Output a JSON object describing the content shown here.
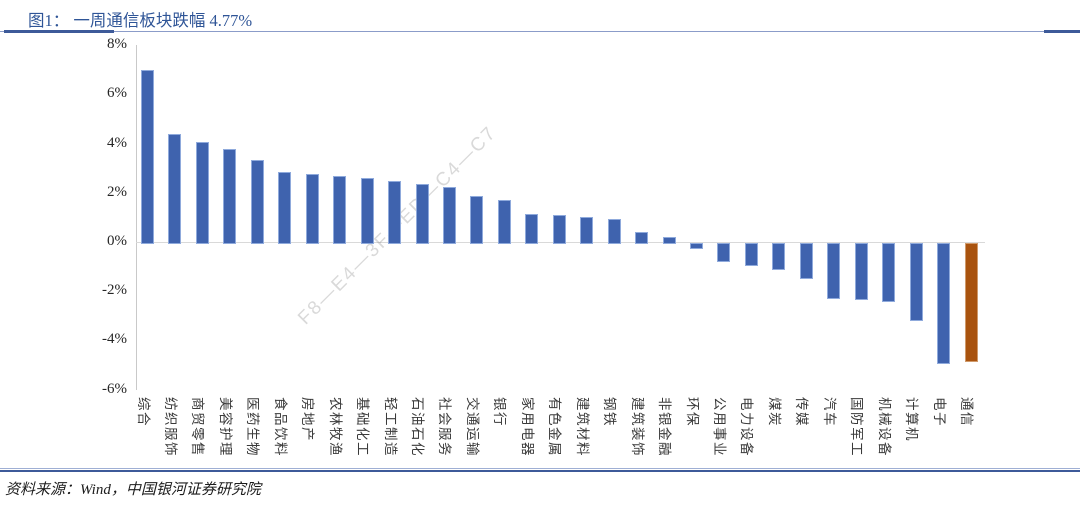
{
  "header": {
    "title": "图1： 一周通信板块跌幅 4.77%"
  },
  "footer": {
    "source": "资料来源：Wind，中国银河证券研究院"
  },
  "watermark": "F8—E4—3F—ED—C4—C7",
  "colors": {
    "title_blue": "#2F5597",
    "rule_blue": "#3D5A99",
    "bar_blue": "#3F63AE",
    "bar_blue_border": "#8FAADC",
    "bar_orange": "#A9530F",
    "bar_orange_border": "#D09A6B",
    "axis_gray": "#D9D9D9"
  },
  "chart_data": {
    "type": "bar",
    "title": "一周通信板块跌幅 4.77%",
    "xlabel": "",
    "ylabel": "",
    "ylim": [
      -6,
      8
    ],
    "yticks": [
      8,
      6,
      4,
      2,
      0,
      -2,
      -4,
      -6
    ],
    "ytick_suffix": "%",
    "grid": false,
    "legend": "none",
    "categories": [
      "综合",
      "纺织服饰",
      "商贸零售",
      "美容护理",
      "医药生物",
      "食品饮料",
      "房地产",
      "农林牧渔",
      "基础化工",
      "轻工制造",
      "石油石化",
      "社会服务",
      "交通运输",
      "银行",
      "家用电器",
      "有色金属",
      "建筑材料",
      "钢铁",
      "建筑装饰",
      "非银金融",
      "环保",
      "公用事业",
      "电力设备",
      "煤炭",
      "传媒",
      "汽车",
      "国防军工",
      "机械设备",
      "计算机",
      "电子",
      "通信"
    ],
    "values": [
      7.0,
      4.4,
      4.05,
      3.8,
      3.35,
      2.85,
      2.75,
      2.7,
      2.6,
      2.5,
      2.35,
      2.25,
      1.85,
      1.7,
      1.15,
      1.1,
      1.0,
      0.95,
      0.4,
      0.2,
      -0.15,
      -0.7,
      -0.85,
      -1.0,
      -1.4,
      -2.2,
      -2.25,
      -2.3,
      -3.1,
      -4.85,
      -4.77
    ],
    "unit": "%",
    "bar_color": "#3F63AE",
    "highlight": {
      "category": "通信",
      "color": "#A9530F"
    }
  }
}
